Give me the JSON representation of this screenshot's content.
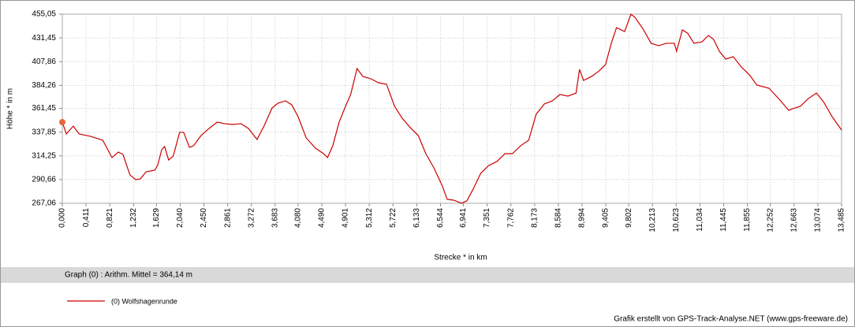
{
  "chart_data": {
    "type": "line",
    "xlabel": "Strecke *  in  km",
    "ylabel": "Höhe *  in  m",
    "summary": "Graph (0) :   Arithm. Mittel = 364,14 m",
    "credit": "Grafik erstellt von GPS-Track-Analyse.NET (www.gps-freeware.de)",
    "grid": true,
    "xlim": [
      0,
      13.485
    ],
    "ylim": [
      267.06,
      455.05
    ],
    "xticks": [
      {
        "value": 0,
        "label": "0,000"
      },
      {
        "value": 0.411,
        "label": "0,411"
      },
      {
        "value": 0.821,
        "label": "0,821"
      },
      {
        "value": 1.232,
        "label": "1,232"
      },
      {
        "value": 1.629,
        "label": "1,629"
      },
      {
        "value": 2.04,
        "label": "2,040"
      },
      {
        "value": 2.45,
        "label": "2,450"
      },
      {
        "value": 2.861,
        "label": "2,861"
      },
      {
        "value": 3.272,
        "label": "3,272"
      },
      {
        "value": 3.683,
        "label": "3,683"
      },
      {
        "value": 4.08,
        "label": "4,080"
      },
      {
        "value": 4.49,
        "label": "4,490"
      },
      {
        "value": 4.901,
        "label": "4,901"
      },
      {
        "value": 5.312,
        "label": "5,312"
      },
      {
        "value": 5.722,
        "label": "5,722"
      },
      {
        "value": 6.133,
        "label": "6,133"
      },
      {
        "value": 6.544,
        "label": "6,544"
      },
      {
        "value": 6.941,
        "label": "6,941"
      },
      {
        "value": 7.351,
        "label": "7,351"
      },
      {
        "value": 7.762,
        "label": "7,762"
      },
      {
        "value": 8.173,
        "label": "8,173"
      },
      {
        "value": 8.584,
        "label": "8,584"
      },
      {
        "value": 8.994,
        "label": "8,994"
      },
      {
        "value": 9.405,
        "label": "9,405"
      },
      {
        "value": 9.802,
        "label": "9,802"
      },
      {
        "value": 10.213,
        "label": "10,213"
      },
      {
        "value": 10.623,
        "label": "10,623"
      },
      {
        "value": 11.034,
        "label": "11,034"
      },
      {
        "value": 11.445,
        "label": "11,445"
      },
      {
        "value": 11.855,
        "label": "11,855"
      },
      {
        "value": 12.252,
        "label": "12,252"
      },
      {
        "value": 12.663,
        "label": "12,663"
      },
      {
        "value": 13.074,
        "label": "13,074"
      },
      {
        "value": 13.485,
        "label": "13,485"
      }
    ],
    "yticks": [
      {
        "value": 267.06,
        "label": "267,06"
      },
      {
        "value": 290.66,
        "label": "290,66"
      },
      {
        "value": 314.25,
        "label": "314,25"
      },
      {
        "value": 337.85,
        "label": "337,85"
      },
      {
        "value": 361.45,
        "label": "361,45"
      },
      {
        "value": 384.26,
        "label": "384,26"
      },
      {
        "value": 407.86,
        "label": "407,86"
      },
      {
        "value": 431.45,
        "label": "431,45"
      },
      {
        "value": 455.05,
        "label": "455,05"
      }
    ],
    "marker_color": "#e8643c",
    "x": [
      0,
      0.07,
      0.19,
      0.29,
      0.49,
      0.7,
      0.86,
      0.97,
      1.05,
      1.17,
      1.27,
      1.35,
      1.45,
      1.6,
      1.65,
      1.72,
      1.77,
      1.84,
      1.92,
      2.03,
      2.1,
      2.2,
      2.27,
      2.4,
      2.54,
      2.68,
      2.81,
      2.95,
      3.09,
      3.22,
      3.37,
      3.49,
      3.63,
      3.73,
      3.86,
      3.97,
      4.08,
      4.22,
      4.38,
      4.52,
      4.59,
      4.68,
      4.79,
      4.9,
      4.99,
      5.1,
      5.2,
      5.34,
      5.47,
      5.61,
      5.75,
      5.88,
      6.02,
      6.16,
      6.29,
      6.43,
      6.57,
      6.66,
      6.77,
      6.91,
      7.0,
      7.11,
      7.24,
      7.38,
      7.52,
      7.66,
      7.79,
      7.93,
      8.07,
      8.2,
      8.34,
      8.48,
      8.61,
      8.75,
      8.89,
      8.95,
      9.02,
      9.16,
      9.29,
      9.4,
      9.5,
      9.59,
      9.73,
      9.84,
      9.91,
      10.05,
      10.19,
      10.32,
      10.45,
      10.59,
      10.63,
      10.73,
      10.82,
      10.93,
      11.07,
      11.18,
      11.27,
      11.37,
      11.48,
      11.61,
      11.75,
      11.89,
      12.02,
      12.23,
      12.43,
      12.57,
      12.64,
      12.77,
      12.91,
      13.05,
      13.18,
      13.32,
      13.485
    ],
    "series": [
      {
        "name": "(0) Wolfshagenrunde",
        "color": "#cc0000",
        "values": [
          347.7,
          336.0,
          343.8,
          336.0,
          333.6,
          329.7,
          312.5,
          318.0,
          315.6,
          295.3,
          290.6,
          291.3,
          298.4,
          300.0,
          304.7,
          320.3,
          323.5,
          310.1,
          314.1,
          337.6,
          337.6,
          322.7,
          324.2,
          334.4,
          341.5,
          347.7,
          346.2,
          345.4,
          346.2,
          341.5,
          330.5,
          343.8,
          361.8,
          366.5,
          368.9,
          365.0,
          353.2,
          332.1,
          321.9,
          316.4,
          312.5,
          324.2,
          347.7,
          363.4,
          375.2,
          401.0,
          393.2,
          390.8,
          386.9,
          385.4,
          363.4,
          351.7,
          342.3,
          334.4,
          316.4,
          302.3,
          285.1,
          271.0,
          270.2,
          267.1,
          269.4,
          281.2,
          296.8,
          304.7,
          308.6,
          316.4,
          316.4,
          324.2,
          329.7,
          355.6,
          365.8,
          368.9,
          375.2,
          373.6,
          376.7,
          400.2,
          389.2,
          393.2,
          398.7,
          404.9,
          426.1,
          441.7,
          437.8,
          455.0,
          451.9,
          440.2,
          426.1,
          423.7,
          426.1,
          426.1,
          418.2,
          439.4,
          436.2,
          426.1,
          427.6,
          433.9,
          430.0,
          418.2,
          410.4,
          412.8,
          402.6,
          394.7,
          384.6,
          381.4,
          368.9,
          359.5,
          361.1,
          363.4,
          371.2,
          376.7,
          367.3,
          353.2,
          339.9
        ]
      }
    ]
  }
}
